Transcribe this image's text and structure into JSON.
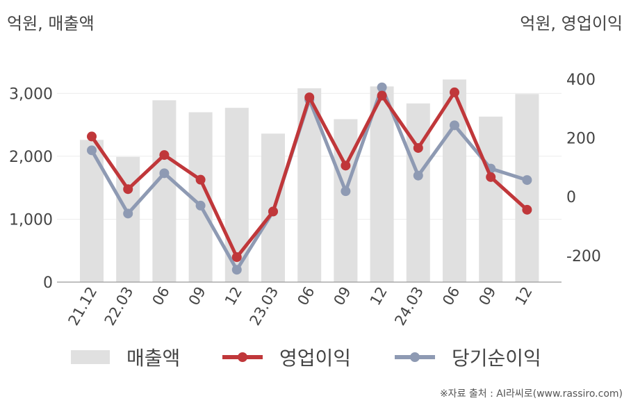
{
  "chart_data": {
    "type": "bar+line",
    "left_axis_label": "억원, 매출액",
    "right_axis_label": "억원, 영업이익",
    "categories": [
      "21.12",
      "22.03",
      "06",
      "09",
      "12",
      "23.03",
      "06",
      "09",
      "12",
      "24.03",
      "06",
      "09",
      "12"
    ],
    "left_ylim": [
      0,
      3600
    ],
    "left_ticks": [
      0,
      1000,
      2000,
      3000
    ],
    "left_tick_labels": [
      "0",
      "1,000",
      "2,000",
      "3,000"
    ],
    "right_ylim": [
      -290,
      480
    ],
    "right_ticks": [
      -200,
      0,
      200,
      400
    ],
    "right_tick_labels": [
      "-200",
      "0",
      "200",
      "400"
    ],
    "grid": true,
    "legend_position": "bottom",
    "series": [
      {
        "name": "매출액",
        "kind": "bar",
        "axis": "left",
        "color": "#e0e0e0",
        "values": [
          2260,
          1990,
          2890,
          2700,
          2770,
          2360,
          3080,
          2590,
          3110,
          2840,
          3220,
          2630,
          2990
        ]
      },
      {
        "name": "영업이익",
        "kind": "line",
        "axis": "right",
        "color": "#c0373a",
        "values": [
          205,
          26,
          142,
          58,
          -205,
          -50,
          338,
          106,
          344,
          166,
          355,
          67,
          -44
        ]
      },
      {
        "name": "당기순이익",
        "kind": "line",
        "axis": "right",
        "color": "#8e9ab3",
        "values": [
          158,
          -57,
          80,
          -30,
          -248,
          -50,
          330,
          19,
          372,
          72,
          243,
          96,
          57
        ]
      }
    ]
  },
  "legend": {
    "revenue": "매출액",
    "operating_profit": "영업이익",
    "net_income": "당기순이익"
  },
  "credit": "※자료 출처 : AI라씨로(www.rassiro.com)"
}
